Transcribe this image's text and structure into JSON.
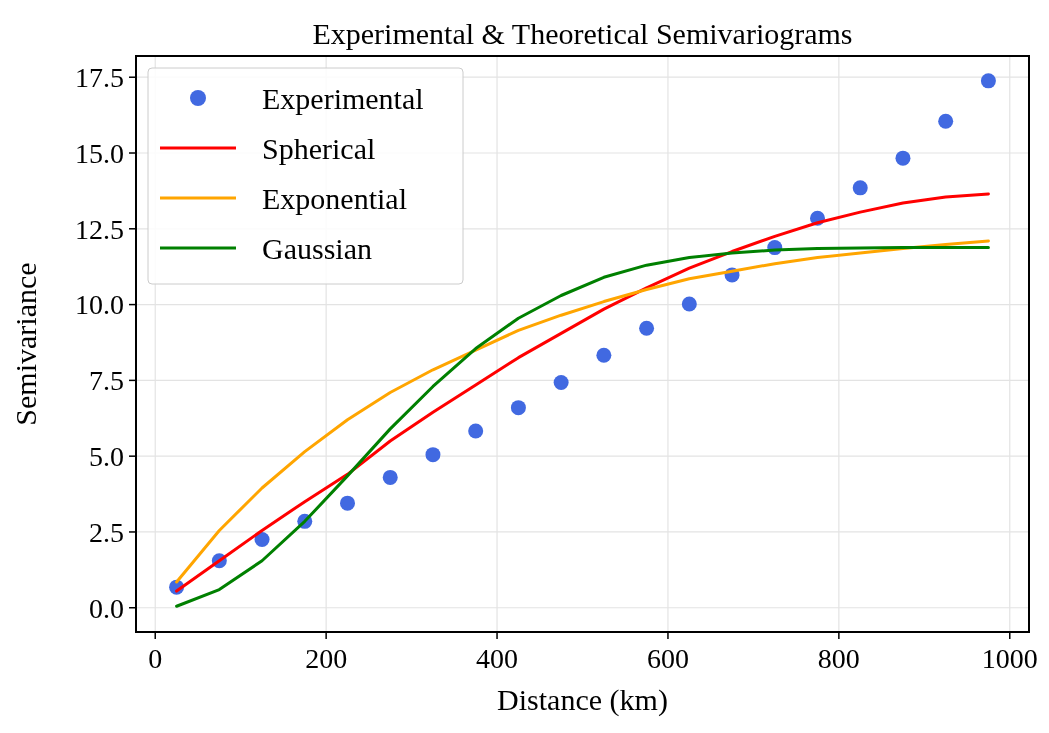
{
  "chart_data": {
    "type": "line",
    "title": "Experimental & Theoretical Semivariograms",
    "xlabel": "Distance (km)",
    "ylabel": "Semivariance",
    "x": [
      25,
      75,
      125,
      175,
      225,
      275,
      325,
      375,
      425,
      475,
      525,
      575,
      625,
      675,
      725,
      775,
      825,
      875,
      925,
      975
    ],
    "series": [
      {
        "name": "Experimental",
        "type": "scatter",
        "marker": "circle",
        "color": "#4169e1",
        "values": [
          0.68,
          1.55,
          2.25,
          2.85,
          3.45,
          4.3,
          5.05,
          5.83,
          6.6,
          7.43,
          8.33,
          9.22,
          10.02,
          10.98,
          11.88,
          12.85,
          13.85,
          14.83,
          16.05,
          17.38
        ]
      },
      {
        "name": "Spherical",
        "color": "#ff0000",
        "values": [
          0.55,
          1.55,
          2.55,
          3.5,
          4.4,
          5.5,
          6.45,
          7.35,
          8.25,
          9.05,
          9.85,
          10.55,
          11.2,
          11.75,
          12.25,
          12.7,
          13.05,
          13.35,
          13.55,
          13.65
        ]
      },
      {
        "name": "Exponential",
        "color": "#ffa500",
        "values": [
          0.85,
          2.55,
          3.95,
          5.15,
          6.2,
          7.1,
          7.85,
          8.5,
          9.15,
          9.65,
          10.1,
          10.5,
          10.85,
          11.1,
          11.35,
          11.55,
          11.7,
          11.85,
          11.98,
          12.1
        ]
      },
      {
        "name": "Gaussian",
        "color": "#008000",
        "values": [
          0.05,
          0.6,
          1.55,
          2.85,
          4.35,
          5.9,
          7.3,
          8.55,
          9.55,
          10.3,
          10.9,
          11.3,
          11.55,
          11.7,
          11.8,
          11.85,
          11.87,
          11.88,
          11.88,
          11.88
        ]
      }
    ],
    "xlim": [
      -22.5,
      1022.5
    ],
    "xticks": [
      0,
      200,
      400,
      600,
      800,
      1000
    ],
    "ylim": [
      -0.8,
      18.2
    ],
    "yticks": [
      {
        "value": 0,
        "label": "0.0"
      },
      {
        "value": 2.5,
        "label": "2.5"
      },
      {
        "value": 5,
        "label": "5.0"
      },
      {
        "value": 7.5,
        "label": "7.5"
      },
      {
        "value": 10,
        "label": "10.0"
      },
      {
        "value": 12.5,
        "label": "12.5"
      },
      {
        "value": 15,
        "label": "15.0"
      },
      {
        "value": 17.5,
        "label": "17.5"
      }
    ],
    "grid": true,
    "legend": "top left",
    "line_style": "solid"
  }
}
